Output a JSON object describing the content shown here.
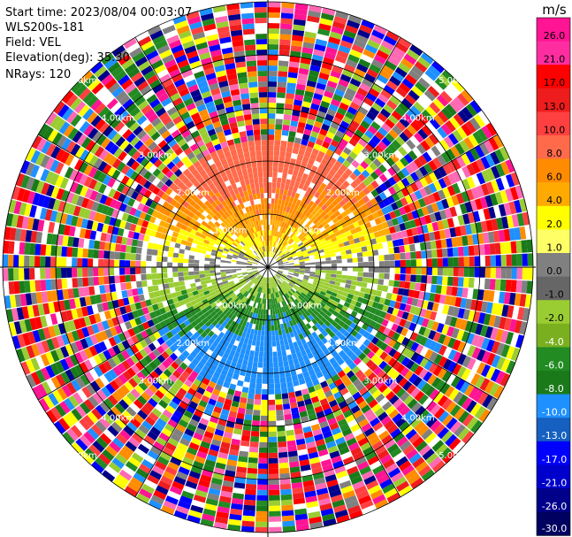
{
  "header": {
    "start_time": "Start time: 2023/08/04 00:03:07",
    "instrument": "WLS200s-181",
    "field": "Field: VEL",
    "elevation": "Elevation(deg): 35.30",
    "nrays": "NRays: 120"
  },
  "colorbar": {
    "unit": "m/s",
    "ticks": [
      "26.0",
      "21.0",
      "17.0",
      "13.0",
      "10.0",
      "8.0",
      "6.0",
      "4.0",
      "2.0",
      "1.0",
      "0.0",
      "-1.0",
      "-2.0",
      "-4.0",
      "-6.0",
      "-8.0",
      "-10.0",
      "-13.0",
      "-17.0",
      "-21.0",
      "-26.0",
      "-30.0"
    ],
    "colors": [
      "#ff1493",
      "#ff2ea0",
      "#ff0000",
      "#ee1c1c",
      "#ff4040",
      "#ff6a4a",
      "#ff8c00",
      "#ffaa00",
      "#ffff00",
      "#ffff66",
      "#808080",
      "#666666",
      "#9acd32",
      "#7ab020",
      "#228b22",
      "#1a7a1a",
      "#1e90ff",
      "#1560c0",
      "#0000ff",
      "#0000cc",
      "#00008b",
      "#000060"
    ]
  },
  "range_rings": {
    "labels": [
      "1.00km",
      "2.00km",
      "3.00km",
      "4.00km",
      "5.00km"
    ]
  },
  "ppi": {
    "n_rays": 120,
    "n_gates": 50,
    "max_range_km": 5.0,
    "clear_gates": 24,
    "noise_palette": [
      "#ff1493",
      "#ff0000",
      "#ff4040",
      "#ff8c00",
      "#ffff00",
      "#808080",
      "#9acd32",
      "#228b22",
      "#1e90ff",
      "#0000ff",
      "#00008b",
      "#ffffff",
      "#ff69b4",
      "#ee1c1c",
      "#1a7a1a"
    ]
  }
}
